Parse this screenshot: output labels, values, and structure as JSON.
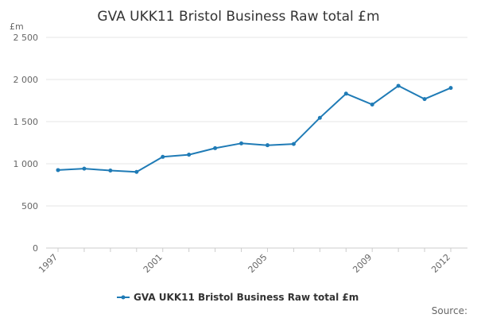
{
  "chart_data": {
    "type": "line",
    "title": "GVA UKK11 Bristol Business Raw total £m",
    "y_unit": "£m",
    "x": [
      1997,
      1998,
      1999,
      2000,
      2001,
      2002,
      2003,
      2004,
      2005,
      2006,
      2007,
      2008,
      2009,
      2010,
      2011,
      2012
    ],
    "x_tick_labels": [
      "1997",
      "2001",
      "2005",
      "2009",
      "2012"
    ],
    "y_tick_labels": [
      "0",
      "500",
      "1 000",
      "1 500",
      "2 000",
      "2 500"
    ],
    "ylim": [
      0,
      2500
    ],
    "grid": "horizontal",
    "legend_position": "bottom-center",
    "series": [
      {
        "name": "GVA UKK11 Bristol Business Raw total £m",
        "color": "#1f7bb6",
        "values": [
          925,
          942,
          920,
          903,
          1082,
          1108,
          1185,
          1242,
          1220,
          1235,
          1545,
          1832,
          1703,
          1925,
          1768,
          1900
        ]
      }
    ],
    "source_label": "Source:"
  }
}
